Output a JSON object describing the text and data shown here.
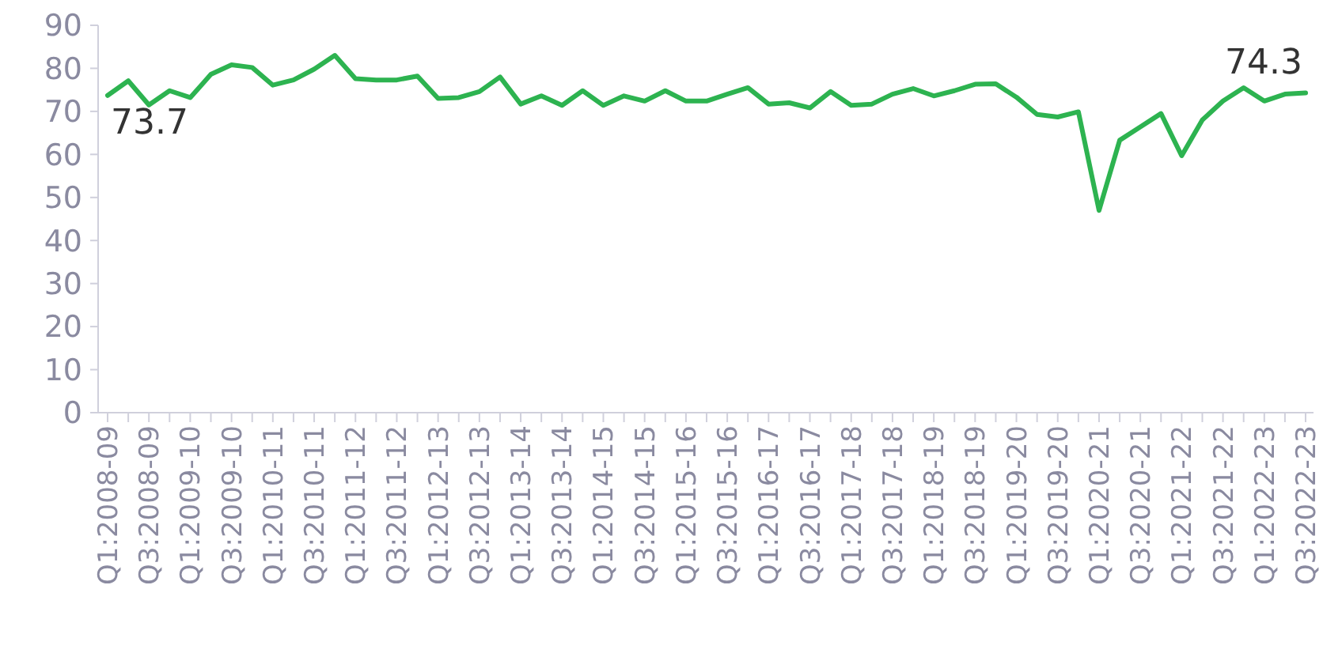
{
  "chart_data": {
    "type": "line",
    "categories": [
      "Q1:2008-09",
      null,
      "Q3:2008-09",
      null,
      "Q1:2009-10",
      null,
      "Q3:2009-10",
      null,
      "Q1:2010-11",
      null,
      "Q3:2010-11",
      null,
      "Q1:2011-12",
      null,
      "Q3:2011-12",
      null,
      "Q1:2012-13",
      null,
      "Q3:2012-13",
      null,
      "Q1:2013-14",
      null,
      "Q3:2013-14",
      null,
      "Q1:2014-15",
      null,
      "Q3:2014-15",
      null,
      "Q1:2015-16",
      null,
      "Q3:2015-16",
      null,
      "Q1:2016-17",
      null,
      "Q3:2016-17",
      null,
      "Q1:2017-18",
      null,
      "Q3:2017-18",
      null,
      "Q1:2018-19",
      null,
      "Q3:2018-19",
      null,
      "Q1:2019-20",
      null,
      "Q3:2019-20",
      null,
      "Q1:2020-21",
      null,
      "Q3:2020-21",
      null,
      "Q1:2021-22",
      null,
      "Q3:2021-22",
      null,
      "Q1:2022-23",
      null,
      "Q3:2022-23"
    ],
    "series": [
      {
        "color": "#2db350",
        "values": [
          73.7,
          77.1,
          71.5,
          74.8,
          73.2,
          78.6,
          80.8,
          80.2,
          76.1,
          77.3,
          79.8,
          83.0,
          77.6,
          77.3,
          77.3,
          78.2,
          73.0,
          73.2,
          74.6,
          78.0,
          71.7,
          73.6,
          71.4,
          74.8,
          71.4,
          73.6,
          72.4,
          74.8,
          72.4,
          72.4,
          74.0,
          75.5,
          71.7,
          72.0,
          70.8,
          74.6,
          71.4,
          71.7,
          74.0,
          75.3,
          73.6,
          74.8,
          76.3,
          76.4,
          73.3,
          69.3,
          68.7,
          69.9,
          47.0,
          63.3,
          66.4,
          69.5,
          59.7,
          68.0,
          72.4,
          75.5,
          72.4,
          74.0,
          74.3
        ],
        "value_labels": [
          "73.7",
          null,
          null,
          null,
          null,
          null,
          null,
          null,
          null,
          null,
          null,
          null,
          null,
          null,
          null,
          null,
          null,
          null,
          null,
          null,
          null,
          null,
          null,
          null,
          null,
          null,
          null,
          null,
          null,
          null,
          null,
          null,
          null,
          null,
          null,
          null,
          null,
          null,
          null,
          null,
          null,
          null,
          null,
          null,
          null,
          null,
          null,
          null,
          null,
          null,
          null,
          null,
          null,
          null,
          null,
          null,
          null,
          null,
          "74.3"
        ]
      }
    ],
    "ylim": [
      0,
      90
    ],
    "yticks": [
      0,
      10,
      20,
      30,
      40,
      50,
      60,
      70,
      80,
      90
    ],
    "grid": false,
    "marker": "none",
    "line_style": "solid"
  }
}
